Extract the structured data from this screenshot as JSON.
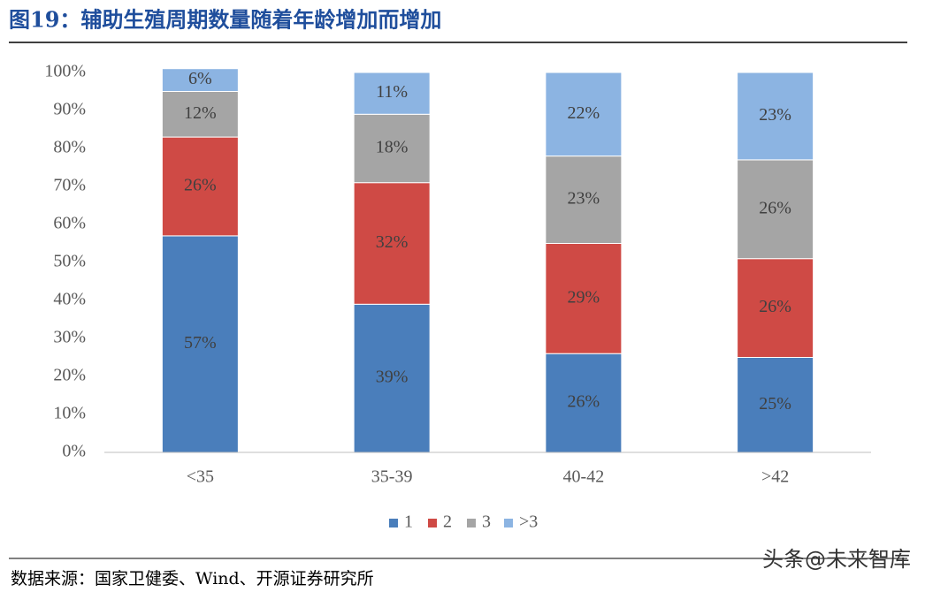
{
  "chart_data": {
    "type": "stacked_bar",
    "title": "图19：辅助生殖周期数量随着年龄增加而增加",
    "source": "数据来源：国家卫健委、Wind、开源证券研究所",
    "watermark": "头条@未来智库",
    "categories": [
      "<35",
      "35-39",
      "40-42",
      ">42"
    ],
    "series": [
      {
        "name": "1",
        "color": "#4a7ebb",
        "values": [
          57,
          39,
          26,
          25
        ],
        "value_labels": [
          "57%",
          "39%",
          "26%",
          "25%"
        ]
      },
      {
        "name": "2",
        "color": "#cf4a45",
        "values": [
          26,
          32,
          29,
          26
        ],
        "value_labels": [
          "26%",
          "32%",
          "29%",
          "26%"
        ]
      },
      {
        "name": "3",
        "color": "#a5a5a5",
        "values": [
          12,
          18,
          23,
          26
        ],
        "value_labels": [
          "12%",
          "18%",
          "23%",
          "26%"
        ]
      },
      {
        "name": ">3",
        "color": "#8cb4e2",
        "values": [
          6,
          11,
          22,
          23
        ],
        "value_labels": [
          "6%",
          "11%",
          "22%",
          "23%"
        ]
      }
    ],
    "ylim": [
      0,
      100
    ],
    "yticks": [
      {
        "value": 0,
        "label": "0%"
      },
      {
        "value": 10,
        "label": "10%"
      },
      {
        "value": 20,
        "label": "20%"
      },
      {
        "value": 30,
        "label": "30%"
      },
      {
        "value": 40,
        "label": "40%"
      },
      {
        "value": 50,
        "label": "50%"
      },
      {
        "value": 60,
        "label": "60%"
      },
      {
        "value": 70,
        "label": "70%"
      },
      {
        "value": 80,
        "label": "80%"
      },
      {
        "value": 90,
        "label": "90%"
      },
      {
        "value": 100,
        "label": "100%"
      }
    ],
    "legend": "bottom"
  }
}
